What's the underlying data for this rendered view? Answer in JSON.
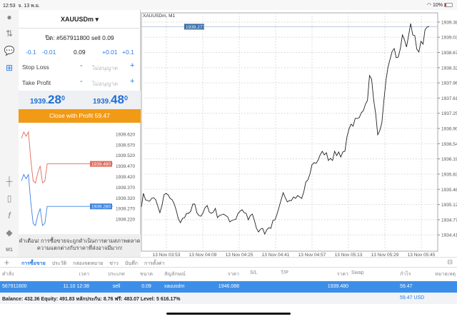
{
  "status": {
    "time": "12:53",
    "date": "จ. 13 พ.ย.",
    "battery": "10%"
  },
  "panel": {
    "symbol": "XAUUSDm",
    "order_line": "ปิด: #567911800 sell 0.09",
    "steppers": [
      "-0.1",
      "-0.01",
      "0.09",
      "+0.01",
      "+0.1"
    ],
    "stop_loss": {
      "label": "Stop Loss",
      "value": "ไม่อนุญาต"
    },
    "take_profit": {
      "label": "Take Profit",
      "value": "ไม่อนุญาต"
    },
    "bid": {
      "head": "1939.",
      "big": "28",
      "sup": "0"
    },
    "ask": {
      "head": "1939.",
      "big": "48",
      "sup": "0"
    },
    "close_button": "Close with Profit 59.47",
    "warning": [
      "คำเตือน! การซื้อขายจะถูกดำเนินการตามสภาพตลาด",
      "ความแตกต่างกับราคาที่ส่งอาจมีมาก!"
    ]
  },
  "mini_chart": {
    "y_ticks": [
      "1939.620",
      "1939.570",
      "1939.520",
      "1939.470",
      "1939.420",
      "1939.370",
      "1939.320",
      "1939.270",
      "1939.220"
    ],
    "ylim": [
      1939.17,
      1939.66
    ],
    "ask_label": "1939.480",
    "bid_label": "1939.280",
    "ask_color": "#e06a5c",
    "bid_color": "#3b82e0",
    "ask": [
      1939.6,
      1939.63,
      1939.61,
      1939.63,
      1939.5,
      1939.4,
      1939.39,
      1939.44,
      1939.47,
      1939.39,
      1939.4,
      1939.48,
      1939.48,
      1939.48,
      1939.48,
      1939.48,
      1939.48,
      1939.48,
      1939.48,
      1939.48,
      1939.48,
      1939.48,
      1939.48,
      1939.48,
      1939.48,
      1939.48,
      1939.48,
      1939.48,
      1939.48,
      1939.48,
      1939.48,
      1939.48,
      1939.48,
      1939.48,
      1939.48,
      1939.48,
      1939.48,
      1939.48,
      1939.48,
      1939.48
    ],
    "bid": [
      1939.4,
      1939.43,
      1939.41,
      1939.43,
      1939.3,
      1939.2,
      1939.19,
      1939.24,
      1939.27,
      1939.19,
      1939.2,
      1939.28,
      1939.28,
      1939.28,
      1939.28,
      1939.28,
      1939.28,
      1939.28,
      1939.28,
      1939.28,
      1939.28,
      1939.28,
      1939.28,
      1939.28,
      1939.28,
      1939.28,
      1939.28,
      1939.28,
      1939.28,
      1939.28,
      1939.28,
      1939.28,
      1939.28,
      1939.28,
      1939.28,
      1939.28,
      1939.28,
      1939.28,
      1939.28,
      1939.28
    ]
  },
  "chart_data": {
    "type": "line",
    "title": "XAUUSDm, M1",
    "ylim": [
      1934.035,
      1939.6
    ],
    "grid": true,
    "y_ticks": [
      "1939.385",
      "1939.030",
      "1938.675",
      "1938.320",
      "1937.965",
      "1937.610",
      "1937.255",
      "1936.900",
      "1936.545",
      "1936.190",
      "1935.835",
      "1935.480",
      "1935.125",
      "1934.770",
      "1934.415"
    ],
    "x_ticks": [
      "13 Nov 03:53",
      "13 Nov 04:09",
      "13 Nov 04:25",
      "13 Nov 04:41",
      "13 Nov 04:57",
      "13 Nov 05:13",
      "13 Nov 05:29",
      "13 Nov 05:45"
    ],
    "current_price": "1939.277",
    "current_value": 1939.277,
    "values": [
      1935.068,
      1935.385,
      1935.235,
      1935.218,
      1935.202,
      1935.268,
      1935.285,
      1935.235,
      1935.085,
      1934.935,
      1935.102,
      1935.352,
      1935.385,
      1935.352,
      1935.268,
      1935.235,
      1935.135,
      1934.985,
      1934.785,
      1934.702,
      1934.802,
      1934.818,
      1934.918,
      1934.918,
      1934.968,
      1935.135,
      1935.135,
      1934.935,
      1934.868,
      1934.852,
      1934.935,
      1935.052,
      1935.102,
      1934.952,
      1934.918,
      1934.952,
      1935.035,
      1934.818,
      1934.868,
      1934.885,
      1934.902,
      1934.868,
      1934.835,
      1934.718,
      1934.752,
      1934.768,
      1934.785,
      1934.918,
      1934.968,
      1935.002,
      1934.935,
      1934.918,
      1934.768,
      1934.868,
      1934.902,
      1934.752,
      1934.568,
      1934.485,
      1934.552,
      1934.568,
      1934.435,
      1934.535,
      1934.585,
      1934.568,
      1934.752,
      1934.768,
      1934.902,
      1935.068,
      1935.235,
      1935.402,
      1935.285,
      1935.185,
      1935.218,
      1935.218,
      1935.302,
      1935.268,
      1935.335,
      1935.302,
      1935.268,
      1935.418,
      1935.652,
      1935.702,
      1935.835,
      1936.052,
      1936.102,
      1936.085,
      1936.168,
      1936.285,
      1936.368,
      1936.285,
      1936.335,
      1936.152,
      1936.202,
      1936.152,
      1936.368,
      1936.268,
      1936.352,
      1936.235,
      1936.352,
      1936.368,
      1936.702,
      1936.885,
      1937.002,
      1936.952,
      1937.135,
      1937.135,
      1937.152,
      1937.268,
      1937.318,
      1937.468,
      1937.552,
      1938.135,
      1938.052,
      1937.568,
      1937.235,
      1936.752,
      1936.852,
      1937.035,
      1937.568,
      1938.035,
      1938.335,
      1938.518,
      1938.702,
      1938.768,
      1938.552,
      1938.568,
      1938.768,
      1939.085,
      1938.968,
      1938.802,
      1939.068,
      1939.352,
      1939.085,
      1939.068,
      1938.752,
      1938.685,
      1938.935,
      1938.868,
      1939.202,
      1939.268,
      1939.285
    ]
  },
  "tabs": [
    "การซื้อขาย",
    "ประวัติ",
    "กล่องจดหมาย",
    "ข่าว",
    "บันทึก",
    "การตั้งค่า"
  ],
  "table": {
    "columns": [
      "คำสั่ง",
      "เวลา",
      "ประเภท",
      "ขนาด",
      "สัญลักษณ์",
      "ราคา",
      "S/L",
      "T/P",
      "ราคา",
      "Swap",
      "กำไร",
      "หมายเหตุ"
    ],
    "rows": [
      [
        "567911800",
        "11.10 12:38",
        "sell",
        "0.09",
        "xauusdm",
        "1946.088",
        "",
        "",
        "1939.480",
        "",
        "59.47",
        ""
      ]
    ]
  },
  "balance": {
    "text": "Balance: 432.36 Equity: 491.83 หลักประกัน: 8.76 ฟรี: 483.07 Level: 5 616.17%",
    "profit": "59.47  USD"
  }
}
